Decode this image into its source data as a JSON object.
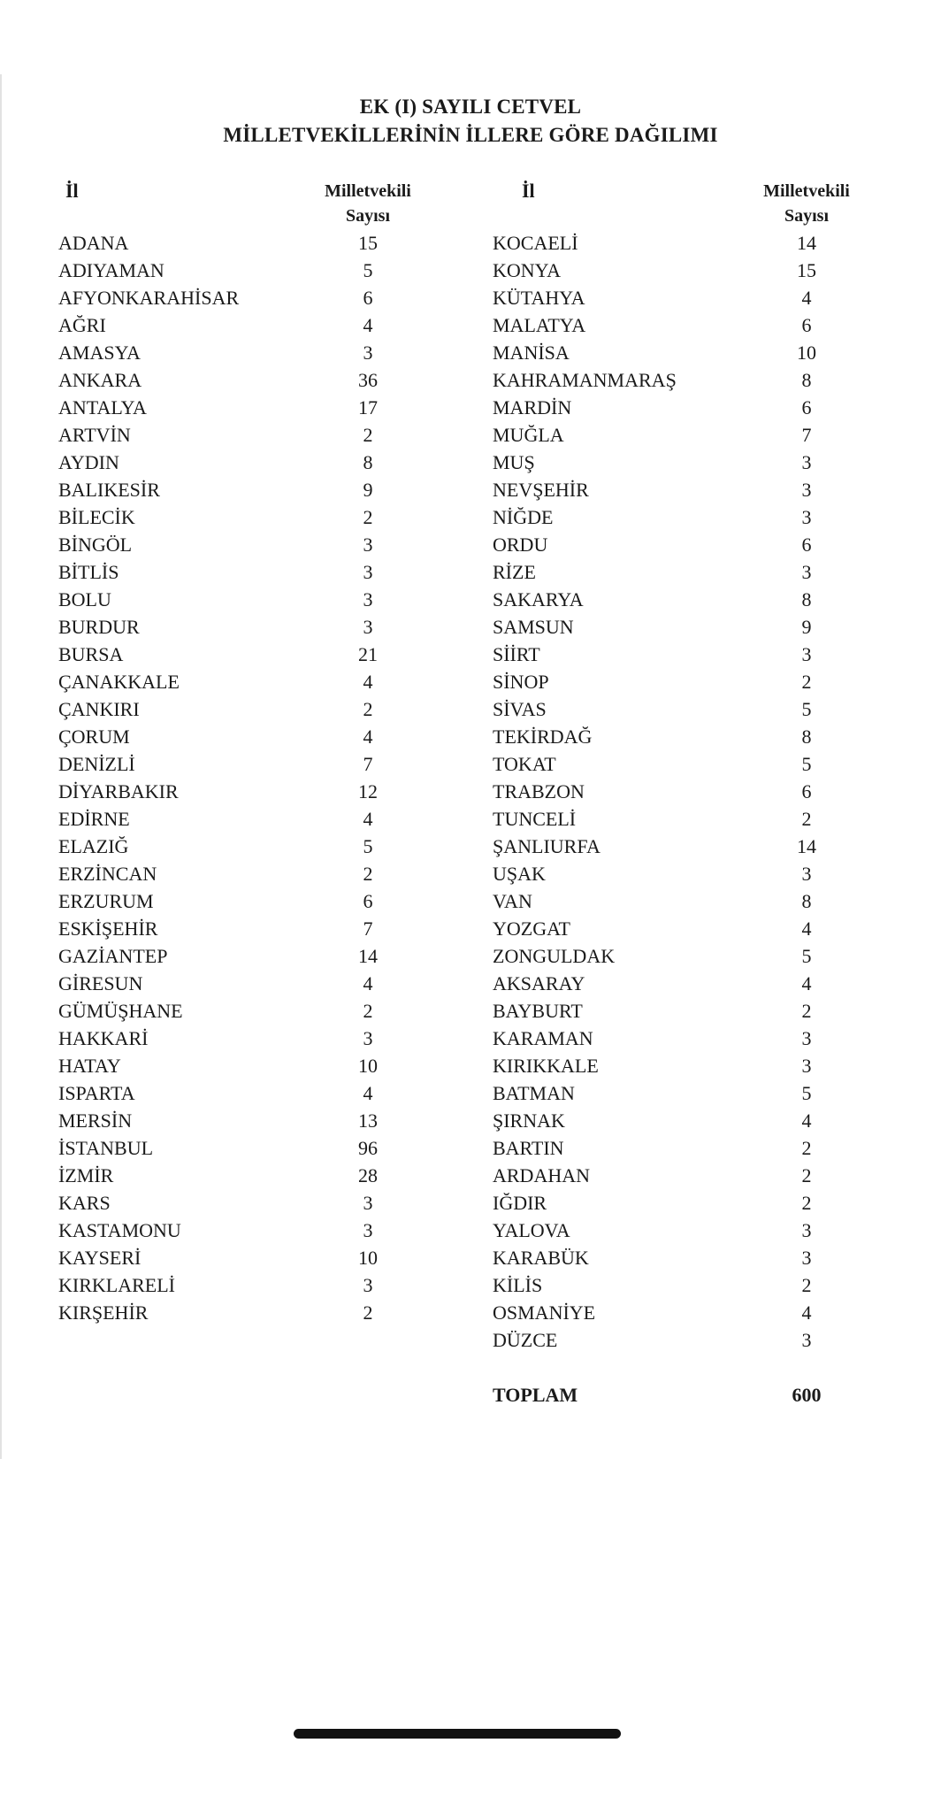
{
  "document": {
    "title_line1": "EK (I) SAYILI CETVEL",
    "title_line2": "MİLLETVEKİLLERİNİN İLLERE GÖRE DAĞILIMI",
    "header_il": "İl",
    "header_count_line1": "Milletvekili",
    "header_count_line2": "Sayısı"
  },
  "left_rows": [
    [
      "ADANA",
      "15"
    ],
    [
      "ADIYAMAN",
      "5"
    ],
    [
      "AFYONKARAHİSAR",
      "6"
    ],
    [
      "AĞRI",
      "4"
    ],
    [
      "AMASYA",
      "3"
    ],
    [
      "ANKARA",
      "36"
    ],
    [
      "ANTALYA",
      "17"
    ],
    [
      "ARTVİN",
      "2"
    ],
    [
      "AYDIN",
      "8"
    ],
    [
      "BALIKESİR",
      "9"
    ],
    [
      "BİLECİK",
      "2"
    ],
    [
      "BİNGÖL",
      "3"
    ],
    [
      "BİTLİS",
      "3"
    ],
    [
      "BOLU",
      "3"
    ],
    [
      "BURDUR",
      "3"
    ],
    [
      "BURSA",
      "21"
    ],
    [
      "ÇANAKKALE",
      "4"
    ],
    [
      "ÇANKIRI",
      "2"
    ],
    [
      "ÇORUM",
      "4"
    ],
    [
      "DENİZLİ",
      "7"
    ],
    [
      "DİYARBAKIR",
      "12"
    ],
    [
      "EDİRNE",
      "4"
    ],
    [
      "ELAZIĞ",
      "5"
    ],
    [
      "ERZİNCAN",
      "2"
    ],
    [
      "ERZURUM",
      "6"
    ],
    [
      "ESKİŞEHİR",
      "7"
    ],
    [
      "GAZİANTEP",
      "14"
    ],
    [
      "GİRESUN",
      "4"
    ],
    [
      "GÜMÜŞHANE",
      "2"
    ],
    [
      "HAKKARİ",
      "3"
    ],
    [
      "HATAY",
      "10"
    ],
    [
      "ISPARTA",
      "4"
    ],
    [
      "MERSİN",
      "13"
    ],
    [
      "İSTANBUL",
      "96"
    ],
    [
      "İZMİR",
      "28"
    ],
    [
      "KARS",
      "3"
    ],
    [
      "KASTAMONU",
      "3"
    ],
    [
      "KAYSERİ",
      "10"
    ],
    [
      "KIRKLARELİ",
      "3"
    ],
    [
      "KIRŞEHİR",
      "2"
    ]
  ],
  "right_rows": [
    [
      "KOCAELİ",
      "14"
    ],
    [
      "KONYA",
      "15"
    ],
    [
      "KÜTAHYA",
      "4"
    ],
    [
      "MALATYA",
      "6"
    ],
    [
      "MANİSA",
      "10"
    ],
    [
      "KAHRAMANMARAŞ",
      "8"
    ],
    [
      "MARDİN",
      "6"
    ],
    [
      "MUĞLA",
      "7"
    ],
    [
      "MUŞ",
      "3"
    ],
    [
      "NEVŞEHİR",
      "3"
    ],
    [
      "NİĞDE",
      "3"
    ],
    [
      "ORDU",
      "6"
    ],
    [
      "RİZE",
      "3"
    ],
    [
      "SAKARYA",
      "8"
    ],
    [
      "SAMSUN",
      "9"
    ],
    [
      "SİİRT",
      "3"
    ],
    [
      "SİNOP",
      "2"
    ],
    [
      "SİVAS",
      "5"
    ],
    [
      "TEKİRDAĞ",
      "8"
    ],
    [
      "TOKAT",
      "5"
    ],
    [
      "TRABZON",
      "6"
    ],
    [
      "TUNCELİ",
      "2"
    ],
    [
      "ŞANLIURFA",
      "14"
    ],
    [
      "UŞAK",
      "3"
    ],
    [
      "VAN",
      "8"
    ],
    [
      "YOZGAT",
      "4"
    ],
    [
      "ZONGULDAK",
      "5"
    ],
    [
      "AKSARAY",
      "4"
    ],
    [
      "BAYBURT",
      "2"
    ],
    [
      "KARAMAN",
      "3"
    ],
    [
      "KIRIKKALE",
      "3"
    ],
    [
      "BATMAN",
      "5"
    ],
    [
      "ŞIRNAK",
      "4"
    ],
    [
      "BARTIN",
      "2"
    ],
    [
      "ARDAHAN",
      "2"
    ],
    [
      "IĞDIR",
      "2"
    ],
    [
      "YALOVA",
      "3"
    ],
    [
      "KARABÜK",
      "3"
    ],
    [
      "KİLİS",
      "2"
    ],
    [
      "OSMANİYE",
      "4"
    ],
    [
      "DÜZCE",
      "3"
    ]
  ],
  "total": {
    "label": "TOPLAM",
    "value": "600"
  }
}
